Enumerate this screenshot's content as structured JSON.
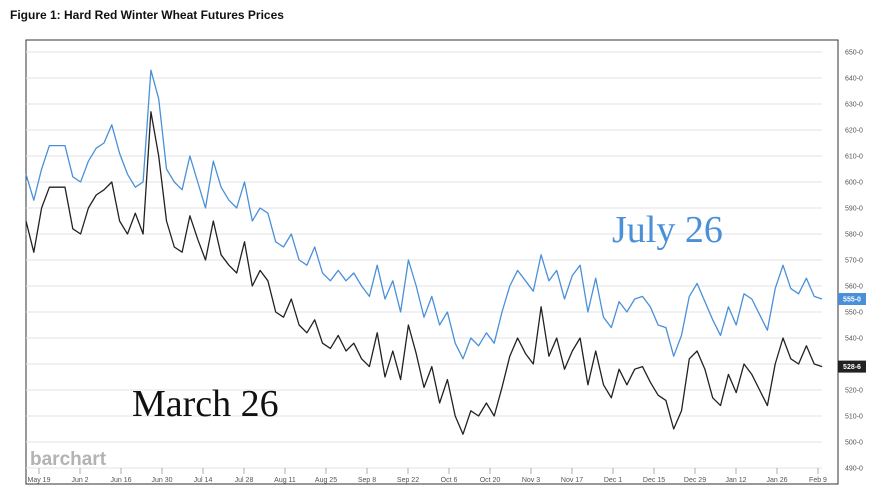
{
  "figure_title": "Figure 1: Hard Red Winter Wheat Futures Prices",
  "watermark": "barchart",
  "chart_data": {
    "type": "line",
    "title": "Figure 1: Hard Red Winter Wheat Futures Prices",
    "x_tick_labels": [
      "May 19",
      "Jun 2",
      "Jun 16",
      "Jun 30",
      "Jul 14",
      "Jul 28",
      "Aug 11",
      "Aug 25",
      "Sep 8",
      "Sep 22",
      "Oct 6",
      "Oct 20",
      "Nov 3",
      "Nov 17",
      "Dec 1",
      "Dec 15",
      "Dec 29",
      "Jan 12",
      "Jan 26",
      "Feb 9"
    ],
    "y_tick_labels": [
      "650-0",
      "640-0",
      "630-0",
      "620-0",
      "610-0",
      "600-0",
      "590-0",
      "580-0",
      "570-0",
      "560-0",
      "550-0",
      "540-0",
      "530-0",
      "520-0",
      "510-0",
      "500-0",
      "490-0"
    ],
    "ylim": [
      490,
      650
    ],
    "grid": true,
    "series": [
      {
        "name": "July 26",
        "color": "#4a90d9",
        "last_label": "555-0",
        "values": [
          603,
          593,
          605,
          614,
          614,
          614,
          602,
          600,
          608,
          613,
          615,
          622,
          611,
          603,
          598,
          600,
          643,
          632,
          605,
          600,
          597,
          610,
          600,
          590,
          608,
          598,
          593,
          590,
          600,
          585,
          590,
          588,
          577,
          575,
          580,
          570,
          568,
          575,
          565,
          562,
          566,
          562,
          565,
          560,
          556,
          568,
          555,
          562,
          550,
          570,
          560,
          548,
          556,
          545,
          550,
          538,
          532,
          540,
          537,
          542,
          538,
          550,
          560,
          566,
          562,
          558,
          572,
          562,
          566,
          555,
          564,
          568,
          550,
          563,
          548,
          544,
          554,
          550,
          555,
          556,
          552,
          545,
          544,
          533,
          541,
          556,
          561,
          554,
          547,
          541,
          552,
          545,
          557,
          555,
          549,
          543,
          559,
          568,
          559,
          557,
          563,
          556,
          555
        ]
      },
      {
        "name": "March 26",
        "color": "#222222",
        "last_label": "528-6",
        "values": [
          585,
          573,
          590,
          598,
          598,
          598,
          582,
          580,
          590,
          595,
          597,
          600,
          585,
          580,
          588,
          580,
          627,
          610,
          585,
          575,
          573,
          587,
          578,
          570,
          585,
          572,
          568,
          565,
          577,
          560,
          566,
          562,
          550,
          548,
          555,
          545,
          542,
          547,
          538,
          536,
          541,
          535,
          538,
          532,
          529,
          542,
          525,
          535,
          524,
          545,
          534,
          521,
          529,
          515,
          524,
          510,
          503,
          512,
          510,
          515,
          510,
          521,
          533,
          540,
          534,
          530,
          552,
          533,
          540,
          528,
          535,
          540,
          522,
          535,
          522,
          517,
          528,
          522,
          528,
          529,
          523,
          518,
          516,
          505,
          512,
          532,
          535,
          528,
          517,
          514,
          526,
          519,
          530,
          526,
          520,
          514,
          530,
          540,
          532,
          530,
          537,
          530,
          529
        ]
      }
    ],
    "annotations": [
      "July 26",
      "March 26"
    ]
  }
}
